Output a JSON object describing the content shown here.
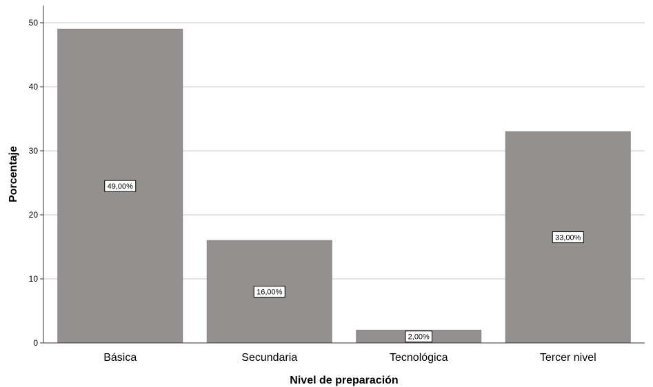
{
  "chart_data": {
    "type": "bar",
    "categories": [
      "Básica",
      "Secundaria",
      "Tecnológica",
      "Tercer nivel"
    ],
    "values": [
      49,
      16,
      2,
      33
    ],
    "data_labels": [
      "49,00%",
      "16,00%",
      "2,00%",
      "33,00%"
    ],
    "xlabel": "Nivel de preparación",
    "ylabel": "Porcentaje",
    "ylim": [
      0,
      52
    ],
    "yticks": [
      0,
      10,
      20,
      30,
      40,
      50
    ],
    "grid": true,
    "bar_color": "#949090",
    "grid_color": "#c8c8c8"
  }
}
